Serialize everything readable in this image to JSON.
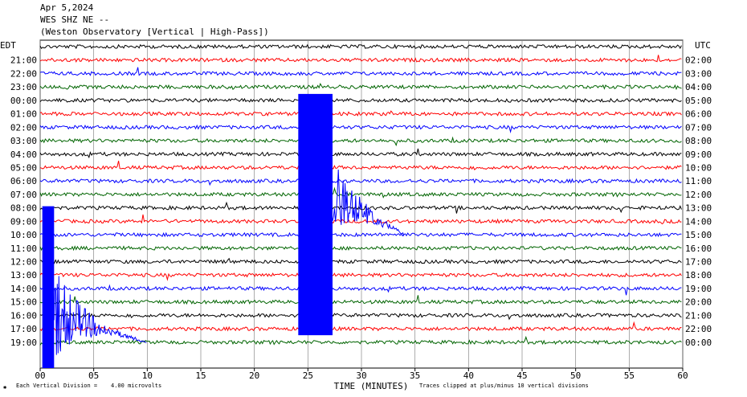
{
  "header": {
    "date": "Apr 5,2024",
    "station": "WES SHZ NE --",
    "observatory": "(Weston Observatory [Vertical | High-Pass])"
  },
  "footer": {
    "scale_note": "Each Vertical Division =    4.00 microvolts",
    "clip_note": "Traces clipped at plus/minus 10 vertical divisions",
    "corner_mark": "✱"
  },
  "colors": {
    "black": "#000000",
    "red": "#ff0000",
    "blue": "#0000ff",
    "green": "#006400"
  },
  "chart_data": {
    "type": "line",
    "xlabel": "TIME (MINUTES)",
    "left_axis_title": "EDT",
    "right_axis_title": "UTC",
    "xlim": [
      0,
      60
    ],
    "x_ticks": [
      "00",
      "05",
      "10",
      "15",
      "20",
      "25",
      "30",
      "35",
      "40",
      "45",
      "50",
      "55",
      "60"
    ],
    "grid": "vertical",
    "rows": [
      {
        "edt": "",
        "utc": "",
        "color": "black"
      },
      {
        "edt": "21:00",
        "utc": "02:00",
        "color": "red"
      },
      {
        "edt": "22:00",
        "utc": "03:00",
        "color": "blue"
      },
      {
        "edt": "23:00",
        "utc": "04:00",
        "color": "green"
      },
      {
        "edt": "00:00",
        "utc": "05:00",
        "color": "black"
      },
      {
        "edt": "01:00",
        "utc": "06:00",
        "color": "red"
      },
      {
        "edt": "02:00",
        "utc": "07:00",
        "color": "blue"
      },
      {
        "edt": "03:00",
        "utc": "08:00",
        "color": "green"
      },
      {
        "edt": "04:00",
        "utc": "09:00",
        "color": "black"
      },
      {
        "edt": "05:00",
        "utc": "10:00",
        "color": "red"
      },
      {
        "edt": "06:00",
        "utc": "11:00",
        "color": "blue"
      },
      {
        "edt": "07:00",
        "utc": "12:00",
        "color": "green"
      },
      {
        "edt": "08:00",
        "utc": "13:00",
        "color": "black"
      },
      {
        "edt": "09:00",
        "utc": "14:00",
        "color": "red"
      },
      {
        "edt": "10:00",
        "utc": "15:00",
        "color": "blue"
      },
      {
        "edt": "11:00",
        "utc": "16:00",
        "color": "green"
      },
      {
        "edt": "12:00",
        "utc": "17:00",
        "color": "black"
      },
      {
        "edt": "13:00",
        "utc": "18:00",
        "color": "red"
      },
      {
        "edt": "14:00",
        "utc": "19:00",
        "color": "blue"
      },
      {
        "edt": "15:00",
        "utc": "20:00",
        "color": "green"
      },
      {
        "edt": "16:00",
        "utc": "21:00",
        "color": "black"
      },
      {
        "edt": "17:00",
        "utc": "22:00",
        "color": "red"
      },
      {
        "edt": "19:00",
        "utc": "00:00",
        "color": "green"
      }
    ],
    "events": [
      {
        "name": "earthquake",
        "color": "blue",
        "start_minute": 24.1,
        "end_minute": 27.3,
        "coda_until_minute": 34
      },
      {
        "name": "earthquake",
        "color": "blue",
        "start_minute": 0.2,
        "end_minute": 1.3,
        "coda_until_minute": 10
      }
    ]
  }
}
